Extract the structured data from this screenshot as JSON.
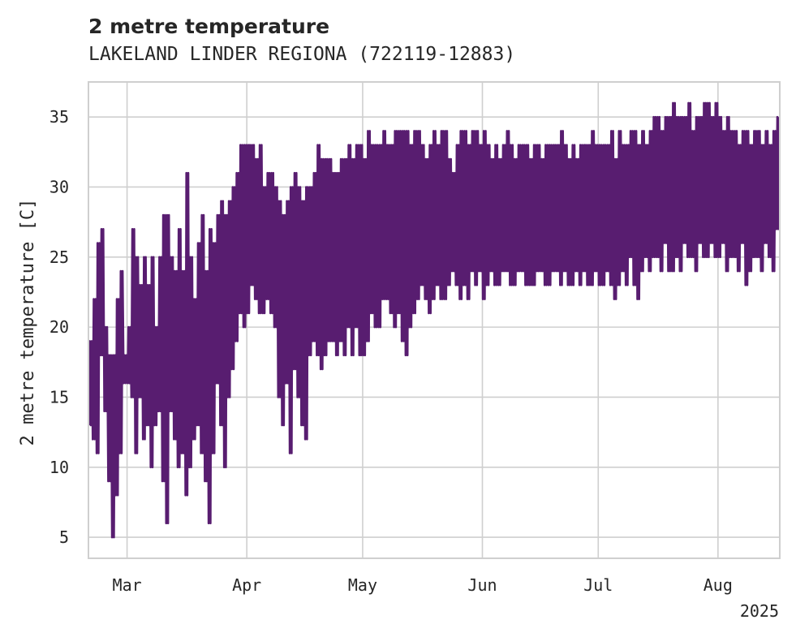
{
  "chart_data": {
    "type": "line",
    "title": "2 metre temperature",
    "subtitle": "LAKELAND LINDER REGIONA (722119-12883)",
    "ylabel": "2 metre temperature [C]",
    "xlabel": "",
    "x_tick_labels": [
      "Mar",
      "Apr",
      "May",
      "Jun",
      "Jul",
      "Aug"
    ],
    "x_year_label": "2025",
    "y_ticks": [
      5,
      10,
      15,
      20,
      25,
      30,
      35
    ],
    "ylim": [
      3.5,
      37.5
    ],
    "xlim": [
      "2025-02-19",
      "2025-08-17"
    ],
    "grid": true,
    "line_color": "#581d70",
    "series": [
      {
        "x": [
          "2025-02-19",
          "2025-02-20",
          "2025-02-21",
          "2025-02-22",
          "2025-02-23",
          "2025-02-24",
          "2025-02-25",
          "2025-02-26",
          "2025-02-27",
          "2025-02-28",
          "2025-03-01",
          "2025-03-02",
          "2025-03-03",
          "2025-03-04",
          "2025-03-05",
          "2025-03-06",
          "2025-03-07",
          "2025-03-08",
          "2025-03-09",
          "2025-03-10",
          "2025-03-11",
          "2025-03-12",
          "2025-03-13",
          "2025-03-14",
          "2025-03-15",
          "2025-03-16",
          "2025-03-17",
          "2025-03-18",
          "2025-03-19",
          "2025-03-20",
          "2025-03-21",
          "2025-03-22",
          "2025-03-23",
          "2025-03-24",
          "2025-03-25",
          "2025-03-26",
          "2025-03-27",
          "2025-03-28",
          "2025-03-29",
          "2025-03-30",
          "2025-03-31",
          "2025-04-01",
          "2025-04-02",
          "2025-04-03",
          "2025-04-04",
          "2025-04-05",
          "2025-04-06",
          "2025-04-07",
          "2025-04-08",
          "2025-04-09",
          "2025-04-10",
          "2025-04-11",
          "2025-04-12",
          "2025-04-13",
          "2025-04-14",
          "2025-04-15",
          "2025-04-16",
          "2025-04-17",
          "2025-04-18",
          "2025-04-19",
          "2025-04-20",
          "2025-04-21",
          "2025-04-22",
          "2025-04-23",
          "2025-04-24",
          "2025-04-25",
          "2025-04-26",
          "2025-04-27",
          "2025-04-28",
          "2025-04-29",
          "2025-04-30",
          "2025-05-01",
          "2025-05-02",
          "2025-05-03",
          "2025-05-04",
          "2025-05-05",
          "2025-05-06",
          "2025-05-07",
          "2025-05-08",
          "2025-05-09",
          "2025-05-10",
          "2025-05-11",
          "2025-05-12",
          "2025-05-13",
          "2025-05-14",
          "2025-05-15",
          "2025-05-16",
          "2025-05-17",
          "2025-05-18",
          "2025-05-19",
          "2025-05-20",
          "2025-05-21",
          "2025-05-22",
          "2025-05-23",
          "2025-05-24",
          "2025-05-25",
          "2025-05-26",
          "2025-05-27",
          "2025-05-28",
          "2025-05-29",
          "2025-05-30",
          "2025-05-31",
          "2025-06-01",
          "2025-06-02",
          "2025-06-03",
          "2025-06-04",
          "2025-06-05",
          "2025-06-06",
          "2025-06-07",
          "2025-06-08",
          "2025-06-09",
          "2025-06-10",
          "2025-06-11",
          "2025-06-12",
          "2025-06-13",
          "2025-06-14",
          "2025-06-15",
          "2025-06-16",
          "2025-06-17",
          "2025-06-18",
          "2025-06-19",
          "2025-06-20",
          "2025-06-21",
          "2025-06-22",
          "2025-06-23",
          "2025-06-24",
          "2025-06-25",
          "2025-06-26",
          "2025-06-27",
          "2025-06-28",
          "2025-06-29",
          "2025-06-30",
          "2025-07-01",
          "2025-07-02",
          "2025-07-03",
          "2025-07-04",
          "2025-07-05",
          "2025-07-06",
          "2025-07-07",
          "2025-07-08",
          "2025-07-09",
          "2025-07-10",
          "2025-07-11",
          "2025-07-12",
          "2025-07-13",
          "2025-07-14",
          "2025-07-15",
          "2025-07-16",
          "2025-07-17",
          "2025-07-18",
          "2025-07-19",
          "2025-07-20",
          "2025-07-21",
          "2025-07-22",
          "2025-07-23",
          "2025-07-24",
          "2025-07-25",
          "2025-07-26",
          "2025-07-27",
          "2025-07-28",
          "2025-07-29",
          "2025-07-30",
          "2025-07-31",
          "2025-08-01",
          "2025-08-02",
          "2025-08-03",
          "2025-08-04",
          "2025-08-05",
          "2025-08-06",
          "2025-08-07",
          "2025-08-08",
          "2025-08-09",
          "2025-08-10",
          "2025-08-11",
          "2025-08-12",
          "2025-08-13",
          "2025-08-14",
          "2025-08-15",
          "2025-08-16"
        ],
        "y_min": [
          13,
          12,
          11,
          18,
          14,
          9,
          5,
          8,
          11,
          16,
          16,
          15,
          11,
          15,
          12,
          13,
          10,
          13,
          14,
          9,
          6,
          14,
          12,
          10,
          11,
          8,
          10,
          12,
          13,
          11,
          9,
          6,
          11,
          16,
          13,
          10,
          15,
          17,
          19,
          21,
          20,
          21,
          23,
          22,
          21,
          21,
          22,
          21,
          20,
          15,
          13,
          16,
          11,
          17,
          15,
          13,
          12,
          18,
          19,
          18,
          17,
          18,
          19,
          19,
          18,
          19,
          18,
          20,
          18,
          20,
          18,
          18,
          19,
          21,
          20,
          20,
          22,
          22,
          21,
          20,
          21,
          19,
          18,
          20,
          21,
          22,
          23,
          22,
          21,
          22,
          23,
          22,
          22,
          23,
          24,
          23,
          22,
          23,
          22,
          24,
          23,
          24,
          22,
          23,
          24,
          23,
          23,
          24,
          24,
          23,
          23,
          24,
          24,
          23,
          23,
          23,
          24,
          24,
          23,
          23,
          24,
          24,
          23,
          24,
          23,
          23,
          24,
          23,
          24,
          23,
          23,
          24,
          23,
          23,
          24,
          23,
          22,
          23,
          24,
          23,
          25,
          23,
          22,
          24,
          25,
          24,
          25,
          25,
          24,
          26,
          24,
          24,
          25,
          24,
          26,
          25,
          25,
          24,
          26,
          25,
          25,
          26,
          25,
          25,
          26,
          24,
          25,
          25,
          24,
          26,
          23,
          24,
          25,
          25,
          24,
          26,
          25,
          24,
          27
        ],
        "y_max": [
          19,
          22,
          26,
          27,
          20,
          18,
          18,
          22,
          24,
          18,
          20,
          27,
          25,
          23,
          25,
          23,
          25,
          20,
          25,
          28,
          28,
          25,
          24,
          27,
          24,
          31,
          25,
          22,
          26,
          28,
          24,
          27,
          26,
          28,
          29,
          28,
          29,
          30,
          31,
          33,
          33,
          33,
          33,
          32,
          33,
          30,
          31,
          31,
          30,
          29,
          28,
          29,
          30,
          31,
          30,
          29,
          30,
          30,
          31,
          33,
          32,
          32,
          32,
          31,
          31,
          32,
          32,
          33,
          32,
          33,
          33,
          32,
          34,
          33,
          33,
          33,
          34,
          33,
          33,
          34,
          34,
          34,
          34,
          33,
          34,
          34,
          33,
          32,
          33,
          34,
          33,
          34,
          34,
          32,
          31,
          33,
          34,
          34,
          33,
          34,
          34,
          33,
          34,
          33,
          32,
          33,
          32,
          33,
          34,
          33,
          32,
          33,
          33,
          33,
          32,
          33,
          33,
          32,
          33,
          33,
          33,
          33,
          34,
          33,
          32,
          33,
          32,
          33,
          33,
          33,
          34,
          33,
          33,
          33,
          33,
          34,
          32,
          34,
          33,
          33,
          34,
          34,
          33,
          34,
          33,
          34,
          35,
          35,
          34,
          35,
          35,
          36,
          35,
          35,
          35,
          36,
          34,
          35,
          35,
          36,
          36,
          35,
          36,
          35,
          34,
          35,
          34,
          34,
          33,
          34,
          34,
          33,
          34,
          34,
          33,
          34,
          33,
          34,
          35
        ]
      }
    ]
  }
}
